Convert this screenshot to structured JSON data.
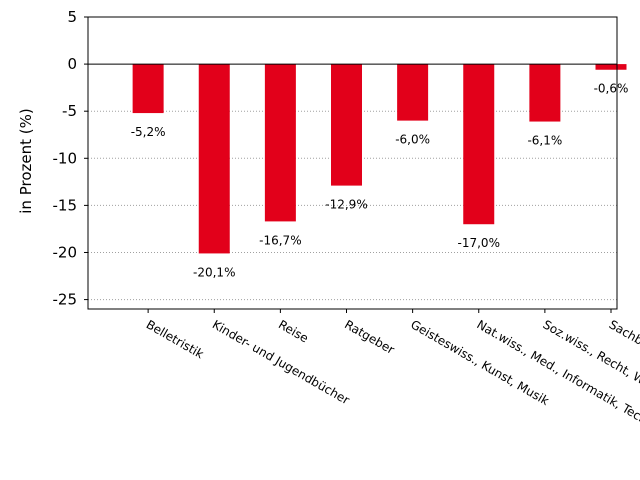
{
  "chart_data": {
    "type": "bar",
    "categories": [
      "Belletristik",
      "Kinder- und Jugendbücher",
      "Reise",
      "Ratgeber",
      "Geisteswiss., Kunst, Musik",
      "Nat.wiss., Med., Informatik, Technik",
      "Soz.wiss., Recht, Wirtsch.",
      "Sachbuch"
    ],
    "values": [
      -5.2,
      -20.1,
      -16.7,
      -12.9,
      -6.0,
      -17.0,
      -6.1,
      -0.6
    ],
    "data_labels": [
      "-5,2%",
      "-20,1%",
      "-16,7%",
      "-12,9%",
      "-6,0%",
      "-17,0%",
      "-6,1%",
      "-0,6%"
    ],
    "ylabel": "in Prozent (%)",
    "xlabel": "",
    "ylim": [
      -26,
      5
    ],
    "yticks": [
      5,
      0,
      -5,
      -10,
      -15,
      -20,
      -25
    ],
    "ytick_labels": [
      "5",
      "0",
      "-5",
      "-10",
      "-15",
      "-20",
      "-25"
    ],
    "grid": "horizontal dotted",
    "legend": "none",
    "bar_color": "#e2001a"
  }
}
